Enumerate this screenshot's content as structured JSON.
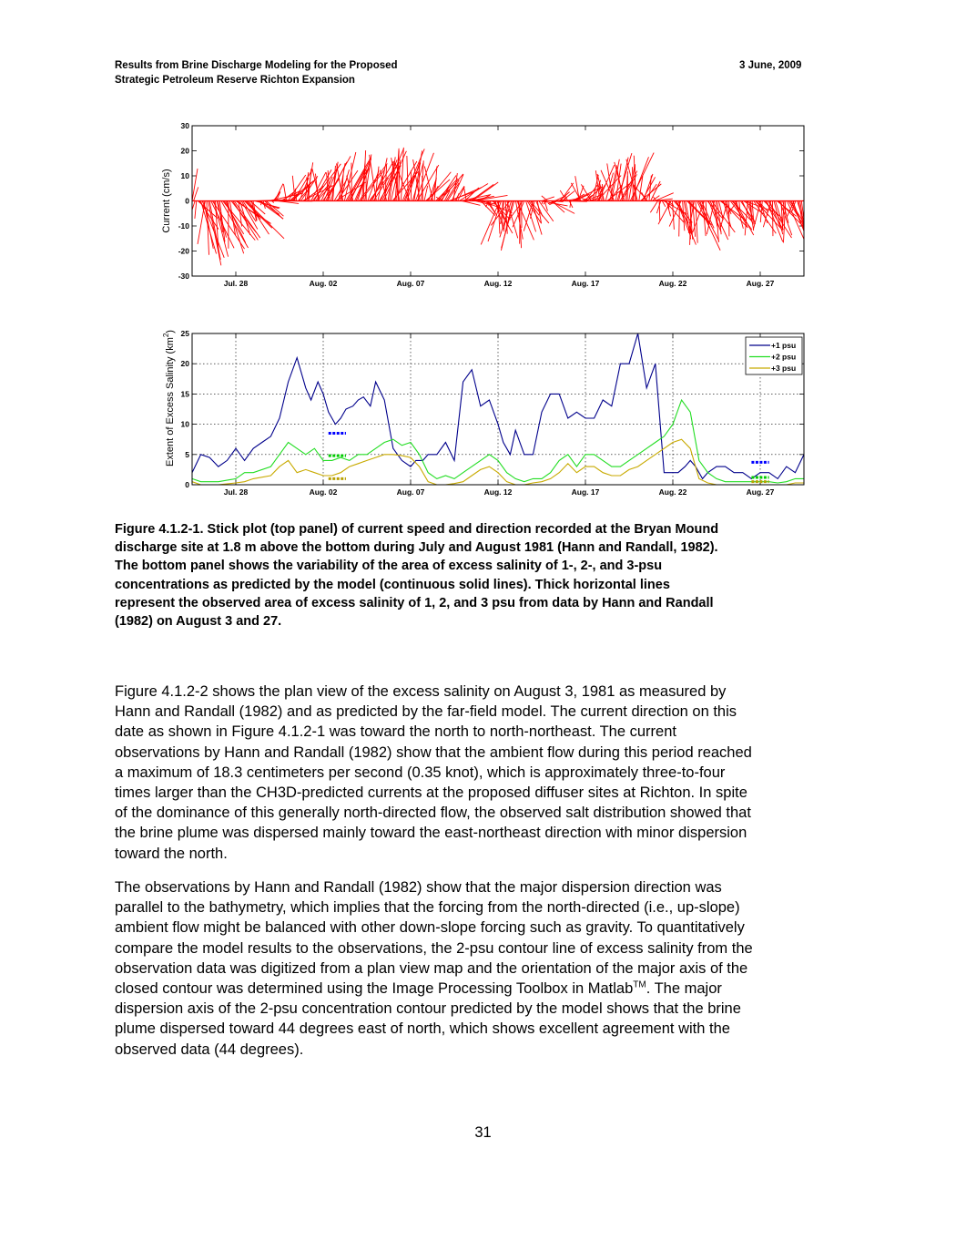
{
  "header": {
    "left_line1": "Results from Brine Discharge Modeling for the Proposed",
    "left_line2": "Strategic Petroleum Reserve Richton Expansion",
    "right": "3 June, 2009"
  },
  "colors": {
    "current_sticks": "#ff0000",
    "psu1": "#00008b",
    "psu2": "#22dd22",
    "psu3": "#c8aa00",
    "obs1": "#0000ff",
    "obs2": "#00cc00",
    "obs3": "#b8a000"
  },
  "chart_data": [
    {
      "type": "stick",
      "ylabel": "Current (cm/s)",
      "ylim": [
        -30,
        30
      ],
      "yticks": [
        "30",
        "20",
        "10",
        "0",
        "-10",
        "-20",
        "-30"
      ],
      "xlim": [
        25.5,
        60.5
      ],
      "xticks": [
        {
          "day": 28,
          "label": "Jul. 28"
        },
        {
          "day": 33,
          "label": "Aug. 02"
        },
        {
          "day": 38,
          "label": "Aug. 07"
        },
        {
          "day": 43,
          "label": "Aug. 12"
        },
        {
          "day": 48,
          "label": "Aug. 17"
        },
        {
          "day": 53,
          "label": "Aug. 22"
        },
        {
          "day": 58,
          "label": "Aug. 27"
        }
      ],
      "v_north_keypoints": [
        [
          25.5,
          12
        ],
        [
          26,
          -22
        ],
        [
          27,
          -18
        ],
        [
          28.5,
          -10
        ],
        [
          29.5,
          -3
        ],
        [
          30.5,
          3
        ],
        [
          31.5,
          9
        ],
        [
          33,
          12
        ],
        [
          34.5,
          14
        ],
        [
          36,
          15
        ],
        [
          37,
          17
        ],
        [
          38,
          17
        ],
        [
          39,
          10
        ],
        [
          40,
          7
        ],
        [
          41,
          4
        ],
        [
          42,
          0
        ],
        [
          43,
          -12
        ],
        [
          44,
          -16
        ],
        [
          45,
          -8
        ],
        [
          46,
          0
        ],
        [
          47,
          2
        ],
        [
          48,
          5
        ],
        [
          49,
          10
        ],
        [
          50,
          15
        ],
        [
          51,
          14
        ],
        [
          52,
          0
        ],
        [
          53,
          -10
        ],
        [
          54,
          -15
        ],
        [
          55,
          -12
        ],
        [
          56,
          -10
        ],
        [
          57,
          -8
        ],
        [
          58,
          -10
        ],
        [
          59,
          -12
        ],
        [
          60,
          -10
        ],
        [
          60.5,
          -9
        ]
      ],
      "u_east_keypoints": [
        [
          25.5,
          3
        ],
        [
          28,
          8
        ],
        [
          30,
          6
        ],
        [
          33,
          4
        ],
        [
          36,
          5
        ],
        [
          38,
          2
        ],
        [
          40,
          5
        ],
        [
          42,
          8
        ],
        [
          43.5,
          -3
        ],
        [
          45,
          3
        ],
        [
          47,
          3
        ],
        [
          50,
          2
        ],
        [
          52,
          2
        ],
        [
          54,
          3
        ],
        [
          57,
          4
        ],
        [
          60.5,
          4
        ]
      ]
    },
    {
      "type": "line",
      "ylabel": "Extent of Excess Salinity (km",
      "ylabel_sup": "2",
      "ylabel_close": ")",
      "ylim": [
        0,
        25
      ],
      "yticks": [
        "25",
        "20",
        "15",
        "10",
        "5",
        "0"
      ],
      "xlim": [
        25.5,
        60.5
      ],
      "xticks": [
        {
          "day": 28,
          "label": "Jul. 28"
        },
        {
          "day": 33,
          "label": "Aug. 02"
        },
        {
          "day": 38,
          "label": "Aug. 07"
        },
        {
          "day": 43,
          "label": "Aug. 12"
        },
        {
          "day": 48,
          "label": "Aug. 17"
        },
        {
          "day": 53,
          "label": "Aug. 22"
        },
        {
          "day": 58,
          "label": "Aug. 27"
        }
      ],
      "grid": true,
      "legend_position": "top-right",
      "series": [
        {
          "name": "+1 psu",
          "color": "#00008b",
          "x": [
            25.5,
            26,
            26.5,
            27,
            27.5,
            28,
            28.5,
            29,
            29.5,
            30,
            30.5,
            31,
            31.5,
            32,
            32.3,
            32.7,
            33,
            33.3,
            33.7,
            34,
            34.3,
            34.7,
            35,
            35.3,
            35.7,
            36,
            36.5,
            37,
            37.5,
            38,
            38.3,
            38.7,
            39,
            39.5,
            40,
            40.5,
            41,
            41.5,
            42,
            42.5,
            43,
            43.3,
            43.7,
            44,
            44.5,
            45,
            45.5,
            46,
            46.5,
            47,
            47.5,
            48,
            48.5,
            49,
            49.5,
            50,
            50.5,
            51,
            51.5,
            52,
            52.5,
            53,
            53.3,
            53.7,
            54,
            54.3,
            54.7,
            55,
            55.5,
            56,
            56.5,
            57,
            57.5,
            58,
            58.5,
            59,
            59.5,
            60,
            60.5
          ],
          "y": [
            2,
            5,
            4.5,
            3,
            4,
            6,
            4,
            6,
            7,
            8,
            11,
            17,
            21,
            16,
            14,
            17,
            15,
            12,
            10,
            11,
            12.5,
            13,
            14,
            14.5,
            13,
            17,
            14,
            6,
            4,
            3,
            4,
            4,
            5,
            5,
            7,
            4,
            17,
            19,
            13,
            14,
            10,
            7,
            5,
            9,
            5,
            5,
            12,
            15,
            15,
            11,
            12,
            11,
            11,
            14,
            13,
            20,
            20,
            25,
            16,
            20,
            2,
            2,
            2,
            3,
            4,
            3,
            1,
            2,
            3,
            3,
            2,
            2,
            1,
            2,
            2,
            1,
            3,
            2,
            5
          ]
        },
        {
          "name": "+2 psu",
          "color": "#22dd22",
          "x": [
            25.5,
            26,
            27,
            28,
            28.5,
            29,
            30,
            30.5,
            31,
            31.5,
            32,
            32.5,
            33,
            33.5,
            34,
            34.5,
            35,
            35.5,
            36,
            36.5,
            37,
            37.5,
            38,
            38.5,
            39,
            39.5,
            40,
            40.5,
            41,
            41.5,
            42,
            42.5,
            43,
            43.5,
            44,
            44.5,
            45,
            45.5,
            46,
            46.5,
            47,
            47.5,
            48,
            48.5,
            49,
            49.5,
            50,
            50.5,
            51,
            51.5,
            52,
            52.5,
            53,
            53.5,
            54,
            54.5,
            55,
            55.5,
            56,
            56.5,
            57,
            57.5,
            58,
            58.5,
            59,
            59.5,
            60,
            60.5
          ],
          "y": [
            1,
            0.5,
            0.5,
            1,
            2,
            2,
            3,
            5,
            7,
            6,
            5,
            6,
            4,
            4,
            4.5,
            4,
            5,
            5,
            6,
            7,
            7.5,
            6.5,
            7,
            5,
            2,
            1,
            1.5,
            1,
            2,
            3,
            4,
            5,
            4,
            2,
            1,
            0.5,
            1,
            1,
            2,
            4,
            5,
            3,
            5,
            5,
            4,
            3,
            3,
            4,
            5,
            6,
            7,
            8,
            10,
            14,
            12,
            4,
            2,
            1,
            0.5,
            0.5,
            0.5,
            0.5,
            0.5,
            0.5,
            0.3,
            0.5,
            1,
            1
          ]
        },
        {
          "name": "+3 psu",
          "color": "#c8aa00",
          "x": [
            25.5,
            26,
            27,
            28,
            28.5,
            29,
            30,
            30.5,
            31,
            31.5,
            32,
            32.5,
            33,
            33.5,
            34,
            34.5,
            35,
            35.5,
            36,
            36.5,
            37,
            37.5,
            38,
            38.5,
            39,
            39.5,
            40,
            40.5,
            41,
            41.5,
            42,
            42.5,
            43,
            43.5,
            44,
            44.5,
            45,
            45.5,
            46,
            46.5,
            47,
            47.5,
            48,
            48.5,
            49,
            49.5,
            50,
            50.5,
            51,
            51.5,
            52,
            52.5,
            53,
            53.5,
            54,
            54.5,
            55,
            55.5,
            56,
            56.5,
            57,
            57.5,
            58,
            58.5,
            59,
            59.5,
            60,
            60.5
          ],
          "y": [
            0.5,
            0,
            0,
            0.3,
            0.5,
            1,
            1.5,
            3,
            4,
            2,
            2.5,
            2,
            1.5,
            1.5,
            2,
            3,
            3.5,
            4,
            4.5,
            5,
            5,
            4.8,
            4.5,
            3,
            0.5,
            0,
            0,
            0.2,
            0.5,
            1.5,
            2.5,
            3,
            2,
            0.5,
            0,
            0,
            0.3,
            0.5,
            1,
            2,
            3.5,
            2,
            3,
            3,
            2,
            1.5,
            1.5,
            2.5,
            3,
            4,
            5,
            6,
            7,
            7.5,
            6,
            1,
            0.3,
            0,
            0,
            0,
            0,
            0,
            0,
            0,
            0,
            0,
            0.3,
            0.3
          ]
        }
      ],
      "observed": [
        {
          "label": "1 psu",
          "color": "#0000ff",
          "x0": 33.3,
          "x1": 34.3,
          "y": 8.5
        },
        {
          "label": "2 psu",
          "color": "#00cc00",
          "x0": 33.3,
          "x1": 34.3,
          "y": 4.8
        },
        {
          "label": "3 psu",
          "color": "#b8a000",
          "x0": 33.3,
          "x1": 34.3,
          "y": 1.0
        },
        {
          "label": "1 psu",
          "color": "#0000ff",
          "x0": 57.5,
          "x1": 58.5,
          "y": 3.7
        },
        {
          "label": "2 psu",
          "color": "#00cc00",
          "x0": 57.5,
          "x1": 58.5,
          "y": 1.2
        },
        {
          "label": "3 psu",
          "color": "#b8a000",
          "x0": 57.5,
          "x1": 58.5,
          "y": 0.5
        }
      ]
    }
  ],
  "caption": [
    "Figure 4.1.2-1.  Stick plot (top panel) of current speed and direction recorded at the Bryan Mound",
    "discharge site at 1.8 m above the bottom during July and August 1981 (Hann and Randall, 1982).",
    "The bottom panel shows the variability of the area of excess salinity of 1-, 2-, and 3-psu",
    "concentrations as predicted by the model (continuous solid lines).  Thick horizontal lines",
    "represent the observed area of excess salinity of 1, 2, and 3 psu from data by Hann and Randall",
    "(1982) on August 3 and 27."
  ],
  "para1": [
    "Figure 4.1.2-2 shows the plan view of the excess salinity on August 3, 1981 as measured by",
    "Hann and Randall (1982) and as predicted by the far-field model.  The current direction on this",
    "date as shown in Figure 4.1.2-1 was toward the north to north-northeast.  The current",
    "observations by Hann and Randall (1982) show that the ambient flow during this period reached",
    "a maximum of 18.3 centimeters per second (0.35 knot), which is approximately three-to-four",
    "times larger than the CH3D-predicted currents at the proposed diffuser sites at Richton.  In spite",
    "of the dominance of this generally north-directed flow, the observed salt distribution showed that",
    "the brine plume was dispersed mainly toward the east-northeast direction with minor dispersion",
    "toward the north."
  ],
  "para2": [
    "The observations by Hann and Randall (1982) show that the major dispersion direction was",
    "parallel to the bathymetry, which implies that the forcing from the north-directed (i.e., up-slope)",
    "ambient flow might be balanced with other down-slope forcing such as gravity.  To quantitatively",
    "compare the model results to the observations, the 2-psu contour line of excess salinity from the",
    "observation data was digitized from a plan view map and the orientation of the major axis of the"
  ],
  "para2_line6_pre": "closed contour was determined using the Image Processing Toolbox in Matlab",
  "para2_line6_sup": "TM",
  "para2_line6_post": ".  The major",
  "para2_rest": [
    "dispersion axis of the 2-psu concentration contour predicted by the model shows that the brine",
    "plume dispersed toward 44 degrees east of north, which shows excellent agreement with the",
    "observed data (44 degrees)."
  ],
  "page_number": "31"
}
